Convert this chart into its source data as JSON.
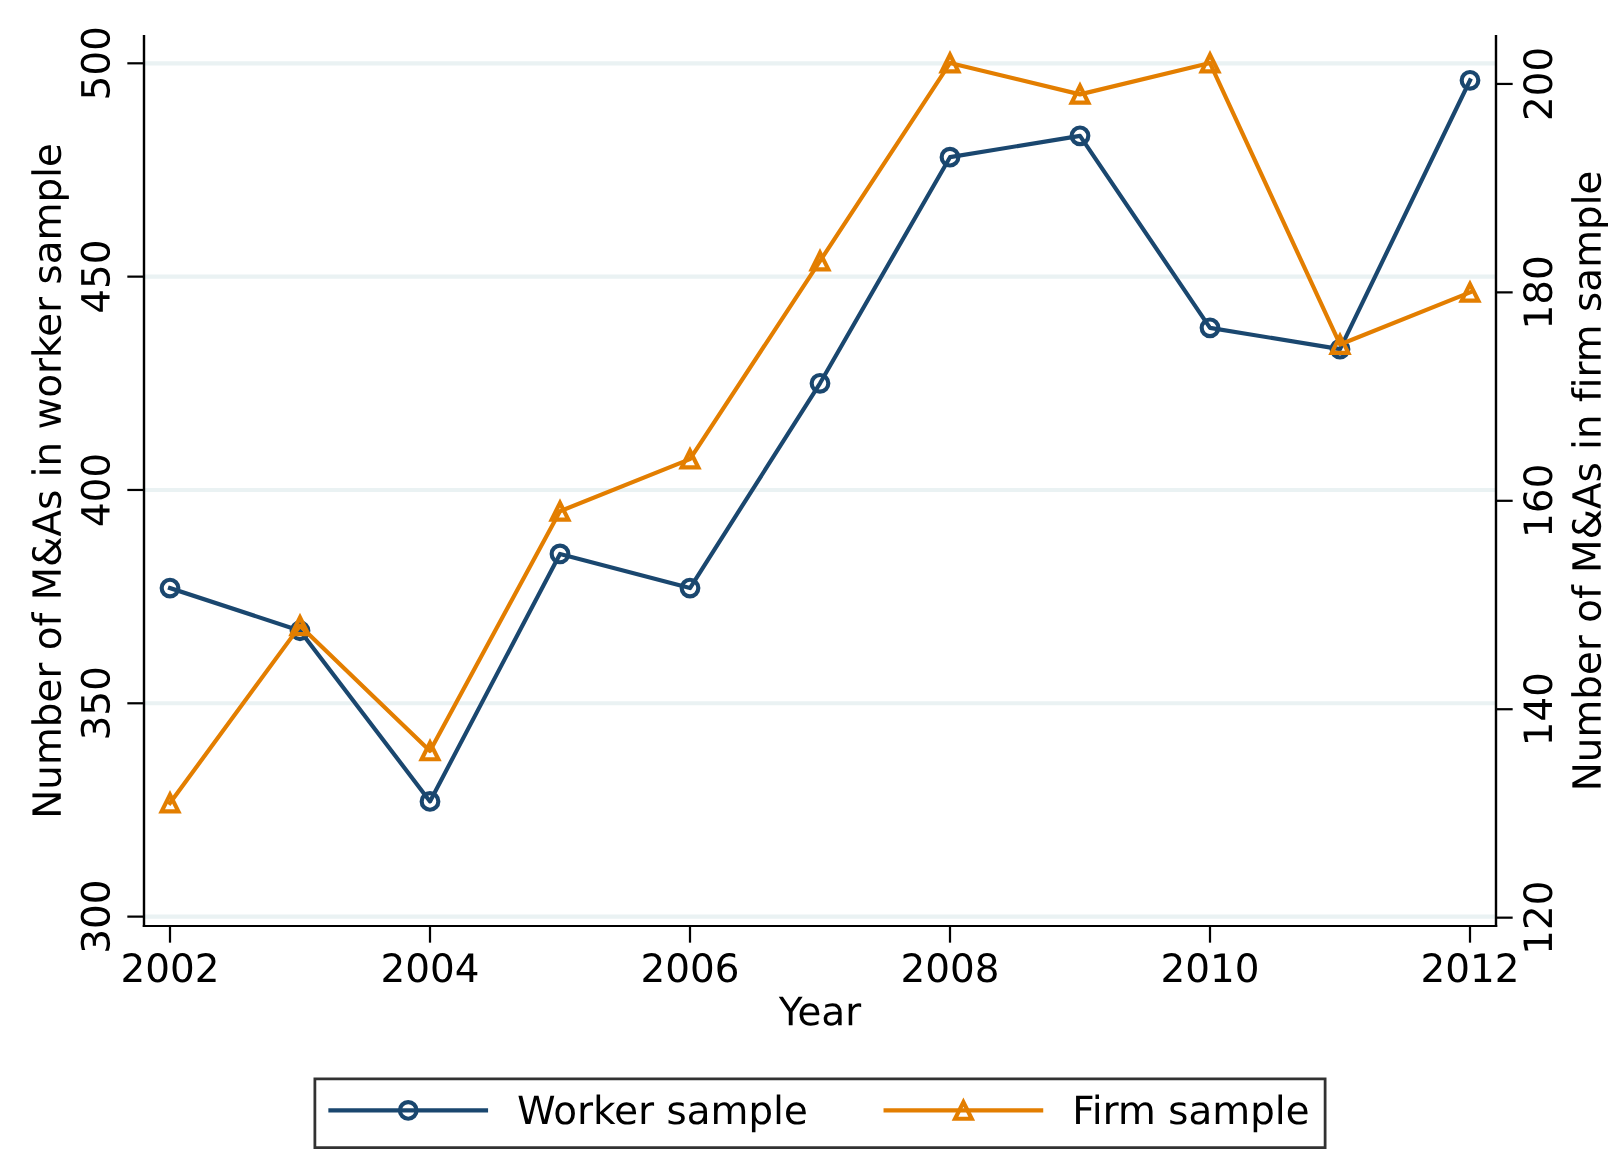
{
  "chart_data": {
    "type": "line",
    "xlabel": "Year",
    "ylabel": "Number of M&As in worker sample",
    "y2label": "Number of M&As in firm sample",
    "x": [
      2002,
      2003,
      2004,
      2005,
      2006,
      2007,
      2008,
      2009,
      2010,
      2011,
      2012
    ],
    "series": [
      {
        "name": "Worker sample",
        "color": "#1a476f",
        "marker": "circle",
        "values": [
          377,
          367,
          327,
          385,
          377,
          425,
          478,
          483,
          438,
          433,
          496
        ]
      },
      {
        "name": "Firm sample",
        "color": "#e37e00",
        "marker": "triangle",
        "axis": "y2",
        "values": [
          131,
          148,
          136,
          159,
          164,
          183,
          202,
          199,
          202,
          175,
          180
        ]
      }
    ],
    "xlim": [
      2001.8,
      2012.2
    ],
    "xticks": [
      2002,
      2004,
      2006,
      2008,
      2010,
      2012
    ],
    "ylim": [
      297.8,
      506.4
    ],
    "yticks": [
      300,
      350,
      400,
      450,
      500
    ],
    "y2lim": [
      119.2,
      204.6
    ],
    "y2ticks": [
      120,
      140,
      160,
      180,
      200
    ],
    "grid": "y",
    "legend": "bottom",
    "line_style": "solid"
  }
}
